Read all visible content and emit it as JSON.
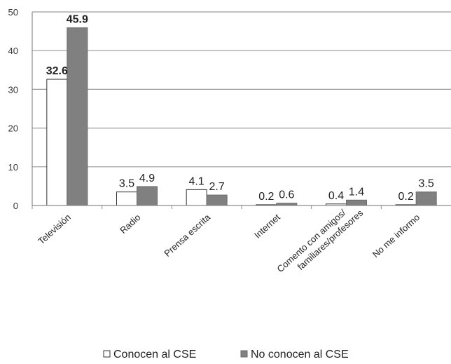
{
  "chart_data": {
    "type": "bar",
    "categories": [
      "Televisión",
      "Radio",
      "Prensa escrita",
      "Internet",
      "Comento con amigos/ familiares/profesores",
      "No me informo"
    ],
    "series": [
      {
        "name": "Conocen al CSE",
        "values": [
          32.6,
          3.5,
          4.1,
          0.2,
          0.4,
          0.2
        ],
        "color": "#ffffff",
        "stroke": "#333333"
      },
      {
        "name": "No conocen al CSE",
        "values": [
          45.9,
          4.9,
          2.7,
          0.6,
          1.4,
          3.5
        ],
        "color": "#808080",
        "stroke": "#6a6a6a"
      }
    ],
    "y_ticks": [
      0,
      10,
      20,
      30,
      40,
      50
    ],
    "ylim": [
      0,
      50
    ],
    "grid": true,
    "legend_position": "bottom",
    "title": "",
    "xlabel": "",
    "ylabel": ""
  }
}
